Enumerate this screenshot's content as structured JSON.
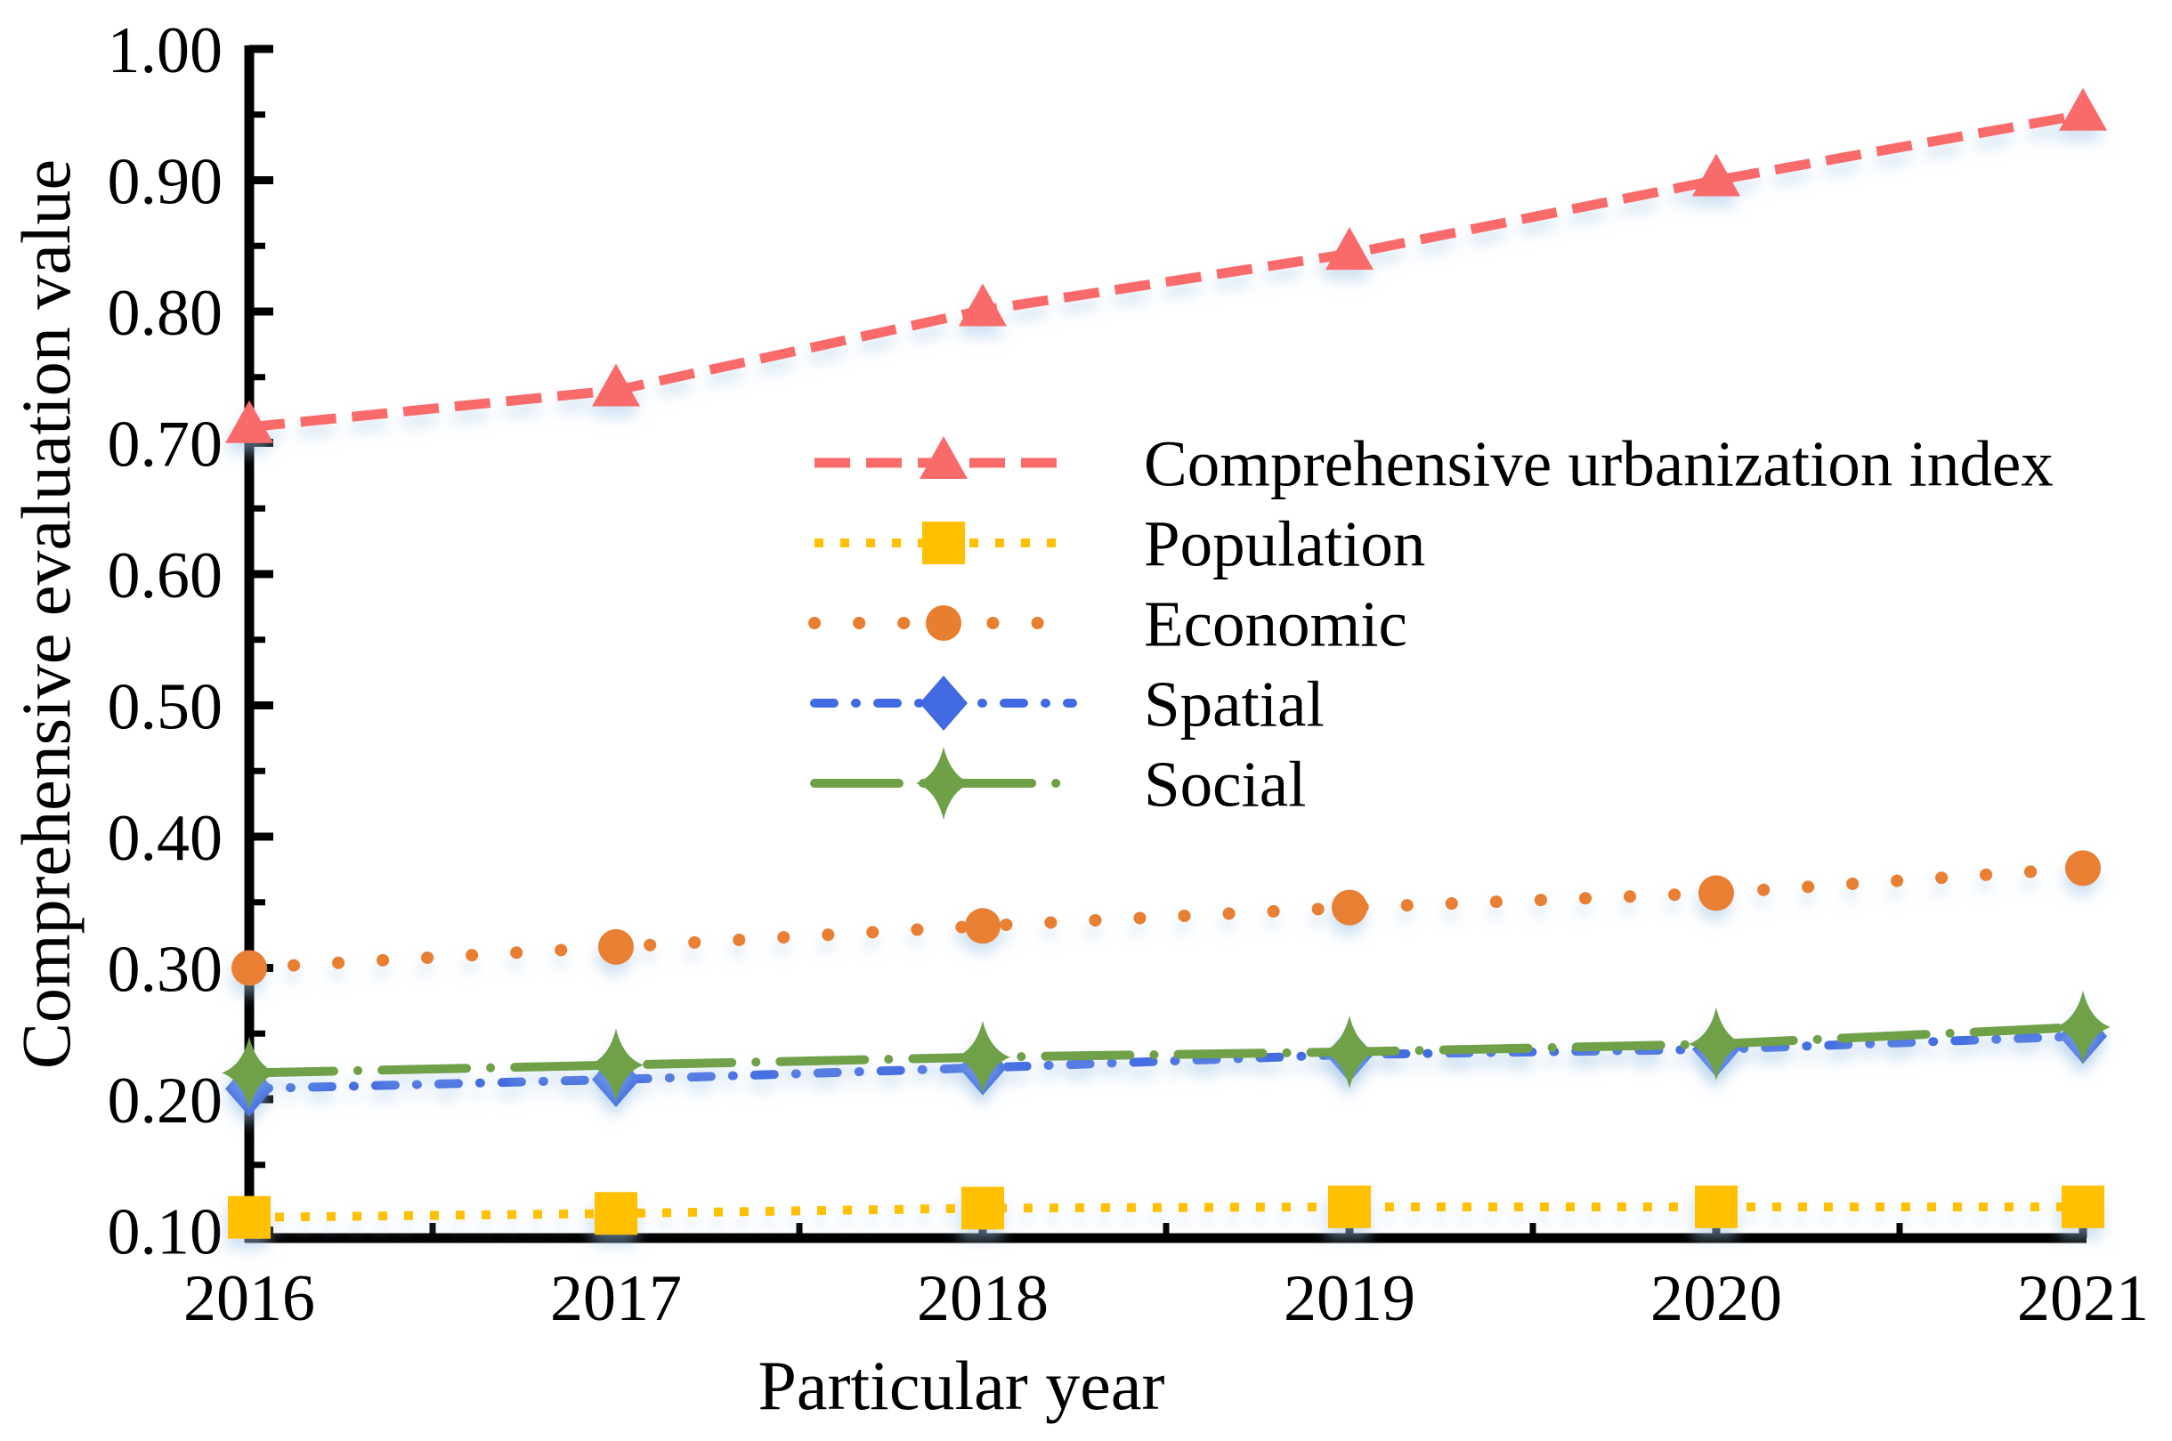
{
  "chart_data": {
    "type": "line",
    "title": "",
    "xlabel": "Particular year",
    "ylabel": "Comprehensive evaluation value",
    "x": [
      2016,
      2017,
      2018,
      2019,
      2020,
      2021
    ],
    "x_tick_labels": [
      "2016",
      "2017",
      "2018",
      "2019",
      "2020",
      "2021"
    ],
    "y_tick_labels": [
      "0.10",
      "0.20",
      "0.30",
      "0.40",
      "0.50",
      "0.60",
      "0.70",
      "0.80",
      "0.90",
      "1.00"
    ],
    "ylim": [
      0.1,
      1.0
    ],
    "y_major_step": 0.1,
    "y_minor_step": 0.05,
    "x_minor_step": 0.5,
    "grid": false,
    "legend_position": "inside-center",
    "axis_color": "#000000",
    "series": [
      {
        "name": "Comprehensive urbanization index",
        "color": "#F96A6A",
        "marker": "triangle",
        "line_style": "dashed",
        "values": [
          0.712,
          0.74,
          0.801,
          0.844,
          0.9,
          0.95
        ]
      },
      {
        "name": "Population",
        "color": "#FFC000",
        "marker": "square",
        "line_style": "dotted-square",
        "values": [
          0.11,
          0.113,
          0.117,
          0.118,
          0.118,
          0.118
        ]
      },
      {
        "name": "Economic",
        "color": "#E87F30",
        "marker": "circle",
        "line_style": "dotted-round",
        "values": [
          0.3,
          0.316,
          0.332,
          0.346,
          0.357,
          0.376
        ]
      },
      {
        "name": "Spatial",
        "color": "#4169E1",
        "marker": "diamond",
        "line_style": "dash-dot",
        "values": [
          0.208,
          0.215,
          0.224,
          0.234,
          0.238,
          0.248
        ]
      },
      {
        "name": "Social",
        "color": "#6FA047",
        "marker": "star4",
        "line_style": "long-dash-dot",
        "values": [
          0.22,
          0.226,
          0.232,
          0.236,
          0.242,
          0.255
        ]
      }
    ]
  }
}
